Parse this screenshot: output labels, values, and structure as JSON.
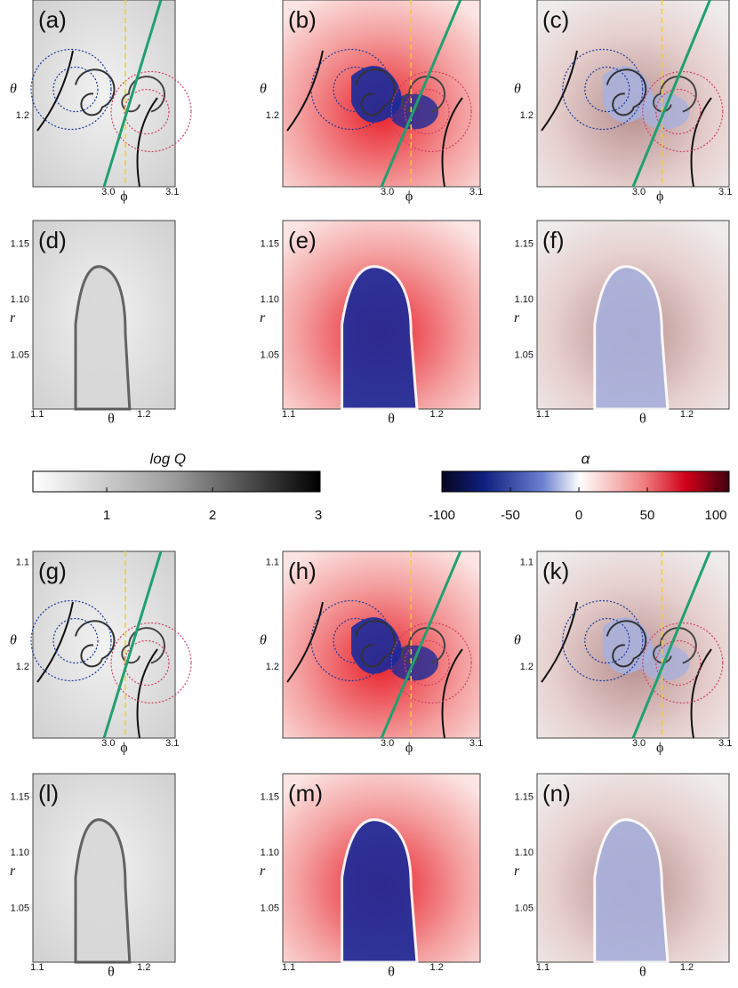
{
  "panels": [
    {
      "label": "(a)",
      "kind": "q",
      "view": "top",
      "x_label": "ϕ",
      "y_label": "θ",
      "x_ticks": [
        "3.0",
        "3.1"
      ],
      "y_ticks": [
        "1.2"
      ]
    },
    {
      "label": "(b)",
      "kind": "a",
      "view": "top",
      "x_label": "ϕ",
      "y_label": "θ",
      "x_ticks": [
        "3.0",
        "3.1"
      ],
      "y_ticks": [
        "1.2"
      ]
    },
    {
      "label": "(c)",
      "kind": "m",
      "view": "top",
      "x_label": "ϕ",
      "y_label": "θ",
      "x_ticks": [
        "3.0",
        "3.1"
      ],
      "y_ticks": [
        "1.2"
      ]
    },
    {
      "label": "(d)",
      "kind": "q",
      "view": "side",
      "x_label": "θ",
      "y_label": "r",
      "x_ticks": [
        "1.1",
        "1.2"
      ],
      "y_ticks": [
        "1.15",
        "1.10",
        "1.05"
      ]
    },
    {
      "label": "(e)",
      "kind": "a",
      "view": "side",
      "x_label": "θ",
      "y_label": "r",
      "x_ticks": [
        "1.1",
        "1.2"
      ],
      "y_ticks": [
        "1.15",
        "1.10",
        "1.05"
      ]
    },
    {
      "label": "(f)",
      "kind": "m",
      "view": "side",
      "x_label": "θ",
      "y_label": "r",
      "x_ticks": [
        "1.1",
        "1.2"
      ],
      "y_ticks": [
        "1.15",
        "1.10",
        "1.05"
      ]
    },
    {
      "label": "(g)",
      "kind": "q",
      "view": "top",
      "x_label": "ϕ",
      "y_label": "θ",
      "x_ticks": [
        "3.0",
        "3.1"
      ],
      "y_ticks": [
        "1.1",
        "1.2"
      ]
    },
    {
      "label": "(h)",
      "kind": "a",
      "view": "top",
      "x_label": "ϕ",
      "y_label": "θ",
      "x_ticks": [
        "3.0",
        "3.1"
      ],
      "y_ticks": [
        "1.1",
        "1.2"
      ]
    },
    {
      "label": "(k)",
      "kind": "m",
      "view": "top",
      "x_label": "ϕ",
      "y_label": "θ",
      "x_ticks": [
        "3.0",
        "3.1"
      ],
      "y_ticks": [
        "1.1",
        "1.2"
      ]
    },
    {
      "label": "(l)",
      "kind": "q",
      "view": "side",
      "x_label": "θ",
      "y_label": "r",
      "x_ticks": [
        "1.1",
        "1.2"
      ],
      "y_ticks": [
        "1.15",
        "1.10",
        "1.05"
      ]
    },
    {
      "label": "(m)",
      "kind": "a",
      "view": "side",
      "x_label": "θ",
      "y_label": "r",
      "x_ticks": [
        "1.1",
        "1.2"
      ],
      "y_ticks": [
        "1.15",
        "1.10",
        "1.05"
      ]
    },
    {
      "label": "(n)",
      "kind": "m",
      "view": "side",
      "x_label": "θ",
      "y_label": "r",
      "x_ticks": [
        "1.1",
        "1.2"
      ],
      "y_ticks": [
        "1.15",
        "1.10",
        "1.05"
      ]
    }
  ],
  "colorbars": [
    {
      "label": "log Q",
      "ticks": [
        "1",
        "2",
        "3"
      ]
    },
    {
      "label": "α",
      "ticks": [
        "-100",
        "-50",
        "0",
        "50",
        "100"
      ]
    }
  ]
}
